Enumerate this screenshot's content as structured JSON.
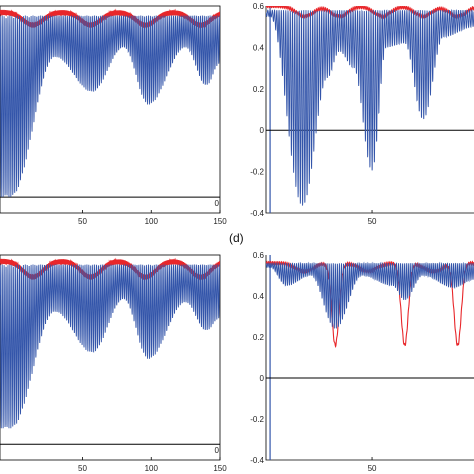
{
  "figure": {
    "panel_label_d": "(d)",
    "colors": {
      "envelope": "#e8262a",
      "oscillation": "#3355aa",
      "axis": "#000000"
    }
  },
  "chart_data": [
    {
      "type": "line",
      "panel": "top-left",
      "xlim": [
        -10,
        150
      ],
      "ylim": [
        -0.05,
        0.6
      ],
      "xticks": [
        50,
        100,
        150
      ],
      "xtick_labels": [
        "50",
        "100",
        "150"
      ],
      "yticks": [
        0
      ],
      "ytick_labels": [
        "0"
      ],
      "grid": false,
      "series": [
        {
          "name": "",
          "color": "#e8262a",
          "style": "envelope",
          "baseline": 0.58,
          "dip_centers": [
            14,
            56,
            96,
            136
          ],
          "dip_depth": 0.04,
          "dip_width": 10
        },
        {
          "name": "",
          "color": "#3355aa",
          "style": "oscillation",
          "upper": 0.57,
          "trough_points": [
            [
              -2,
              0.0
            ],
            [
              30,
              0.44
            ],
            [
              57,
              0.33
            ],
            [
              80,
              0.47
            ],
            [
              98,
              0.29
            ],
            [
              125,
              0.47
            ],
            [
              140,
              0.35
            ],
            [
              150,
              0.42
            ]
          ],
          "carrier_period": 1.4
        }
      ]
    },
    {
      "type": "line",
      "panel": "top-right",
      "xlim": [
        -2,
        100
      ],
      "ylim": [
        -0.4,
        0.6
      ],
      "xticks": [
        50
      ],
      "xtick_labels": [
        "50"
      ],
      "yticks": [
        0.6,
        0.4,
        0.2,
        0,
        -0.2,
        -0.4
      ],
      "ytick_labels": [
        "0.6",
        "0.4",
        "0.2",
        "0",
        "-0.2",
        "-0.4"
      ],
      "grid": false,
      "series": [
        {
          "name": "",
          "color": "#e8262a",
          "style": "envelope",
          "baseline": 0.6,
          "dip_centers": [
            17,
            34,
            55,
            75,
            92
          ],
          "dip_depth": 0.05,
          "dip_width": 6
        },
        {
          "name": "",
          "color": "#3355aa",
          "style": "oscillation",
          "upper": 0.58,
          "trough_points": [
            [
              0,
              0.55
            ],
            [
              16,
              -0.37
            ],
            [
              28,
              0.25
            ],
            [
              34,
              0.38
            ],
            [
              41,
              0.3
            ],
            [
              50,
              -0.2
            ],
            [
              57,
              0.4
            ],
            [
              66,
              0.42
            ],
            [
              75,
              0.05
            ],
            [
              85,
              0.45
            ],
            [
              100,
              0.5
            ]
          ],
          "carrier_period": 1.1
        }
      ]
    },
    {
      "type": "line",
      "panel": "bottom-left",
      "xlim": [
        -10,
        150
      ],
      "ylim": [
        -0.05,
        0.6
      ],
      "xticks": [
        50,
        100,
        150
      ],
      "xtick_labels": [
        "50",
        "100",
        "150"
      ],
      "yticks": [
        0
      ],
      "ytick_labels": [
        "0"
      ],
      "grid": false,
      "series": [
        {
          "name": "",
          "color": "#e8262a",
          "style": "envelope",
          "baseline": 0.58,
          "dip_centers": [
            14,
            56,
            96,
            136
          ],
          "dip_depth": 0.05,
          "dip_width": 10
        },
        {
          "name": "",
          "color": "#3355aa",
          "style": "oscillation",
          "upper": 0.57,
          "trough_points": [
            [
              -2,
              0.05
            ],
            [
              30,
              0.42
            ],
            [
              57,
              0.29
            ],
            [
              80,
              0.46
            ],
            [
              98,
              0.27
            ],
            [
              125,
              0.45
            ],
            [
              140,
              0.36
            ],
            [
              150,
              0.4
            ]
          ],
          "carrier_period": 1.4
        }
      ]
    },
    {
      "type": "line",
      "panel": "bottom-right",
      "xlim": [
        -2,
        100
      ],
      "ylim": [
        -0.4,
        0.6
      ],
      "xticks": [
        50
      ],
      "xtick_labels": [
        "50"
      ],
      "yticks": [
        0.6,
        0.4,
        0.2,
        0,
        -0.2,
        -0.4
      ],
      "ytick_labels": [
        "0.6",
        "0.4",
        "0.2",
        "0",
        "-0.2",
        "-0.4"
      ],
      "grid": false,
      "series": [
        {
          "name": "",
          "color": "#e8262a",
          "style": "envelope",
          "baseline": 0.56,
          "dip_centers": [
            32,
            66,
            92
          ],
          "dip_depth": 0.4,
          "dip_width": 2.5,
          "secondary_dip_centers": [
            17,
            48,
            80
          ],
          "secondary_dip_depth": 0.04
        },
        {
          "name": "",
          "color": "#3355aa",
          "style": "oscillation",
          "upper": 0.56,
          "trough_points": [
            [
              0,
              0.54
            ],
            [
              8,
              0.45
            ],
            [
              20,
              0.5
            ],
            [
              32,
              0.24
            ],
            [
              45,
              0.5
            ],
            [
              60,
              0.45
            ],
            [
              66,
              0.38
            ],
            [
              75,
              0.5
            ],
            [
              90,
              0.44
            ],
            [
              100,
              0.48
            ]
          ],
          "carrier_period": 1.0
        }
      ]
    }
  ]
}
